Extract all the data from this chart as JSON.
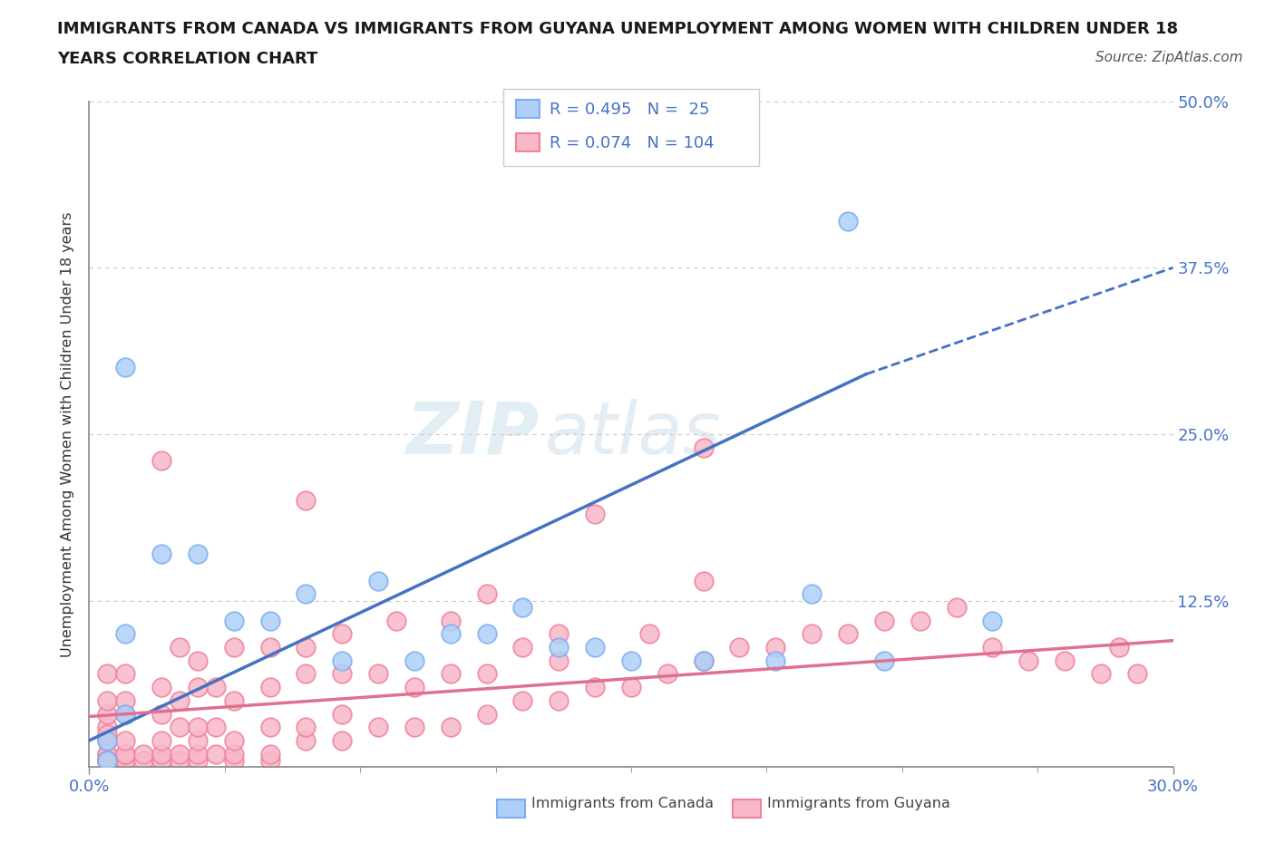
{
  "title_line1": "IMMIGRANTS FROM CANADA VS IMMIGRANTS FROM GUYANA UNEMPLOYMENT AMONG WOMEN WITH CHILDREN UNDER 18",
  "title_line2": "YEARS CORRELATION CHART",
  "source": "Source: ZipAtlas.com",
  "canada_R": 0.495,
  "canada_N": 25,
  "guyana_R": 0.074,
  "guyana_N": 104,
  "xlim": [
    0.0,
    0.3
  ],
  "ylim": [
    0.0,
    0.5
  ],
  "ylabel_ticks": [
    0.125,
    0.25,
    0.375,
    0.5
  ],
  "ylabel_labels": [
    "12.5%",
    "25.0%",
    "37.5%",
    "50.0%"
  ],
  "canada_color": "#7daef0",
  "canada_color_fill": "#aed0f8",
  "guyana_color": "#f0829a",
  "guyana_color_fill": "#f8b8c8",
  "canada_line_color": "#4472c4",
  "guyana_line_color": "#e07090",
  "watermark_part1": "ZIP",
  "watermark_part2": "atlas",
  "canada_scatter_x": [
    0.005,
    0.005,
    0.01,
    0.01,
    0.01,
    0.02,
    0.03,
    0.04,
    0.05,
    0.06,
    0.07,
    0.08,
    0.09,
    0.1,
    0.11,
    0.12,
    0.13,
    0.14,
    0.15,
    0.17,
    0.19,
    0.2,
    0.21,
    0.22,
    0.25
  ],
  "canada_scatter_y": [
    0.005,
    0.02,
    0.3,
    0.04,
    0.1,
    0.16,
    0.16,
    0.11,
    0.11,
    0.13,
    0.08,
    0.14,
    0.08,
    0.1,
    0.1,
    0.12,
    0.09,
    0.09,
    0.08,
    0.08,
    0.08,
    0.13,
    0.41,
    0.08,
    0.11
  ],
  "guyana_scatter_x": [
    0.005,
    0.005,
    0.005,
    0.005,
    0.005,
    0.005,
    0.005,
    0.005,
    0.005,
    0.005,
    0.005,
    0.005,
    0.005,
    0.01,
    0.01,
    0.01,
    0.01,
    0.01,
    0.01,
    0.01,
    0.01,
    0.015,
    0.015,
    0.02,
    0.02,
    0.02,
    0.02,
    0.02,
    0.02,
    0.025,
    0.025,
    0.025,
    0.025,
    0.025,
    0.03,
    0.03,
    0.03,
    0.03,
    0.03,
    0.035,
    0.035,
    0.035,
    0.04,
    0.04,
    0.04,
    0.04,
    0.04,
    0.05,
    0.05,
    0.05,
    0.05,
    0.05,
    0.06,
    0.06,
    0.06,
    0.06,
    0.07,
    0.07,
    0.07,
    0.07,
    0.08,
    0.08,
    0.085,
    0.09,
    0.09,
    0.1,
    0.1,
    0.1,
    0.11,
    0.11,
    0.11,
    0.12,
    0.12,
    0.13,
    0.13,
    0.14,
    0.15,
    0.155,
    0.16,
    0.17,
    0.17,
    0.18,
    0.19,
    0.2,
    0.21,
    0.22,
    0.23,
    0.24,
    0.25,
    0.26,
    0.27,
    0.28,
    0.285,
    0.29,
    0.14,
    0.06,
    0.03,
    0.02,
    0.13,
    0.17,
    0.005,
    0.005,
    0.005,
    0.005
  ],
  "guyana_scatter_y": [
    0.005,
    0.005,
    0.005,
    0.005,
    0.005,
    0.01,
    0.01,
    0.02,
    0.02,
    0.03,
    0.04,
    0.05,
    0.07,
    0.005,
    0.005,
    0.01,
    0.01,
    0.02,
    0.04,
    0.05,
    0.07,
    0.005,
    0.01,
    0.005,
    0.005,
    0.01,
    0.02,
    0.04,
    0.06,
    0.005,
    0.01,
    0.03,
    0.05,
    0.09,
    0.005,
    0.01,
    0.02,
    0.03,
    0.08,
    0.01,
    0.03,
    0.06,
    0.005,
    0.01,
    0.02,
    0.05,
    0.09,
    0.005,
    0.01,
    0.03,
    0.06,
    0.09,
    0.02,
    0.03,
    0.07,
    0.09,
    0.02,
    0.04,
    0.07,
    0.1,
    0.03,
    0.07,
    0.11,
    0.03,
    0.06,
    0.03,
    0.07,
    0.11,
    0.04,
    0.07,
    0.13,
    0.05,
    0.09,
    0.05,
    0.1,
    0.06,
    0.06,
    0.1,
    0.07,
    0.08,
    0.14,
    0.09,
    0.09,
    0.1,
    0.1,
    0.11,
    0.11,
    0.12,
    0.09,
    0.08,
    0.08,
    0.07,
    0.09,
    0.07,
    0.19,
    0.2,
    0.06,
    0.23,
    0.08,
    0.24,
    0.005,
    0.005,
    0.025,
    0.005
  ],
  "canada_line_x0": 0.0,
  "canada_line_y0": 0.02,
  "canada_line_x1": 0.215,
  "canada_line_y1": 0.295,
  "canada_line_dash_x1": 0.3,
  "canada_line_dash_y1": 0.375,
  "guyana_line_x0": 0.0,
  "guyana_line_y0": 0.038,
  "guyana_line_x1": 0.3,
  "guyana_line_y1": 0.095
}
